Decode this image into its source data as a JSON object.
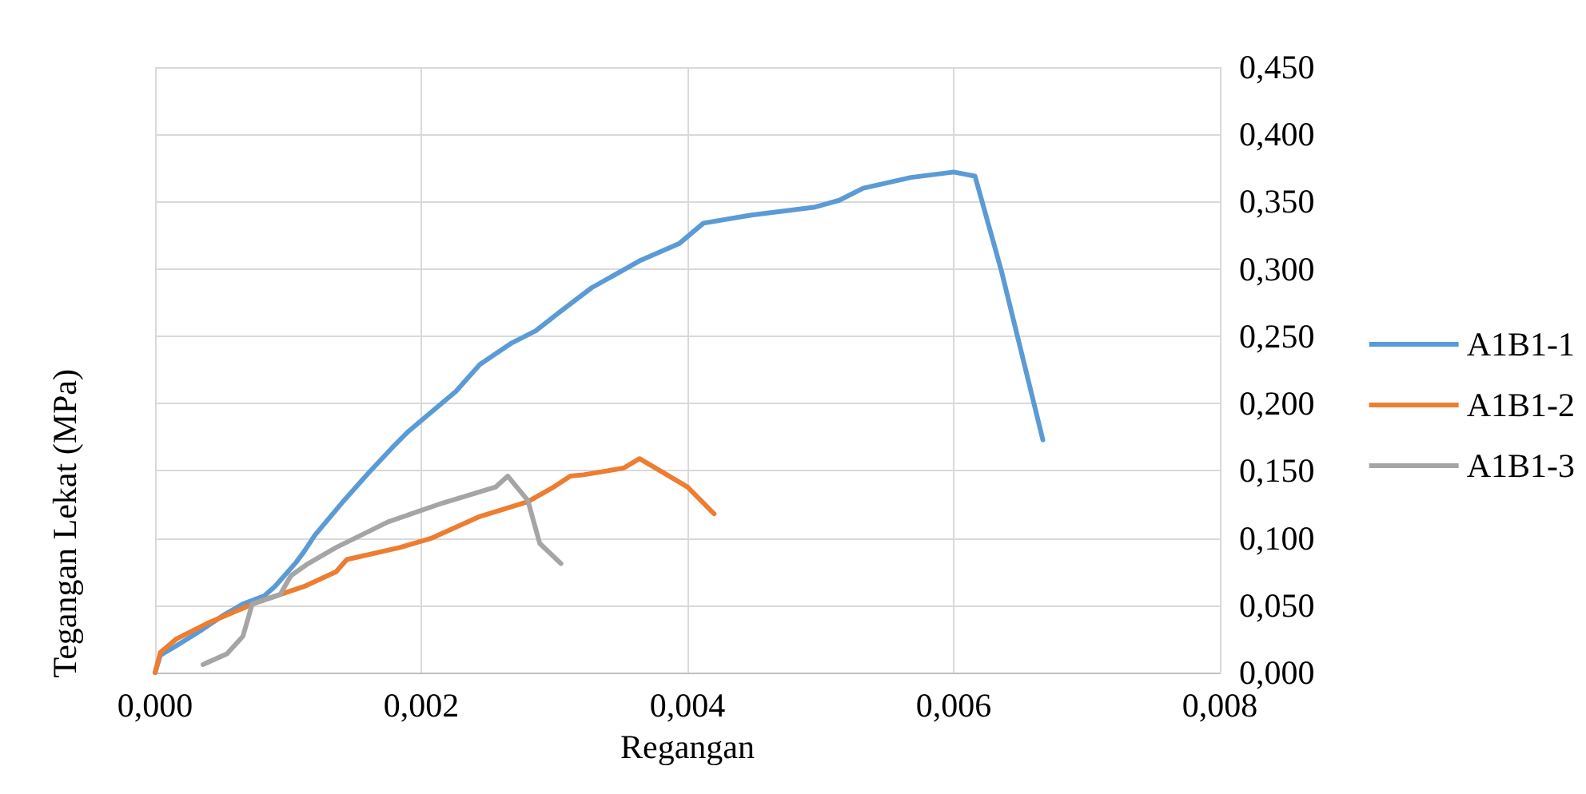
{
  "chart_data": {
    "type": "line",
    "xlabel": "Regangan",
    "ylabel": "Tegangan Lekat (MPa)",
    "xlim": [
      0,
      0.008
    ],
    "xticks": [
      {
        "value": 0,
        "label": "0,000"
      },
      {
        "value": 0.002,
        "label": "0,002"
      },
      {
        "value": 0.004,
        "label": "0,004"
      },
      {
        "value": 0.006,
        "label": "0,006"
      },
      {
        "value": 0.008,
        "label": "0,008"
      }
    ],
    "ylim": [
      0,
      0.45
    ],
    "yticks": [
      {
        "value": 0,
        "label": "0,000"
      },
      {
        "value": 0.05,
        "label": "0,050"
      },
      {
        "value": 0.1,
        "label": "0,100"
      },
      {
        "value": 0.15,
        "label": "0,150"
      },
      {
        "value": 0.2,
        "label": "0,200"
      },
      {
        "value": 0.25,
        "label": "0,250"
      },
      {
        "value": 0.3,
        "label": "0,300"
      },
      {
        "value": 0.35,
        "label": "0,350"
      },
      {
        "value": 0.4,
        "label": "0,400"
      },
      {
        "value": 0.45,
        "label": "0,450"
      }
    ],
    "grid": true,
    "legend": "right",
    "marker": "none",
    "line_style": "solid",
    "series": [
      {
        "name": "A1B1-1",
        "color": "#5b9bd5",
        "x": [
          0,
          4e-05,
          0.00016,
          0.00034,
          0.00052,
          0.00066,
          0.00082,
          0.0009,
          0.00106,
          0.00112,
          0.0012,
          0.00142,
          0.0016,
          0.00178,
          0.0019,
          0.00226,
          0.00244,
          0.00268,
          0.00286,
          0.00304,
          0.00328,
          0.00364,
          0.00394,
          0.00412,
          0.00448,
          0.00496,
          0.00514,
          0.00532,
          0.00568,
          0.006,
          0.00616,
          0.00636,
          0.00667
        ],
        "values": [
          0,
          0.013,
          0.02,
          0.031,
          0.043,
          0.051,
          0.057,
          0.064,
          0.082,
          0.09,
          0.102,
          0.128,
          0.148,
          0.167,
          0.179,
          0.209,
          0.229,
          0.245,
          0.254,
          0.268,
          0.286,
          0.306,
          0.319,
          0.334,
          0.34,
          0.346,
          0.351,
          0.36,
          0.368,
          0.372,
          0.369,
          0.298,
          0.173
        ]
      },
      {
        "name": "A1B1-2",
        "color": "#ed7d31",
        "x": [
          0,
          4e-05,
          0.00016,
          0.0004,
          0.00076,
          0.00112,
          0.00136,
          0.00144,
          0.00184,
          0.00208,
          0.00244,
          0.0028,
          0.00298,
          0.00312,
          0.00322,
          0.00352,
          0.00364,
          0.004,
          0.0042
        ],
        "values": [
          0,
          0.015,
          0.025,
          0.037,
          0.052,
          0.064,
          0.075,
          0.084,
          0.093,
          0.1,
          0.116,
          0.127,
          0.137,
          0.146,
          0.147,
          0.152,
          0.159,
          0.138,
          0.118
        ]
      },
      {
        "name": "A1B1-3",
        "color": "#a5a5a5",
        "x": [
          0.00036,
          0.00054,
          0.00066,
          0.00073,
          0.00094,
          0.00102,
          0.00115,
          0.00136,
          0.00175,
          0.00216,
          0.00256,
          0.00265,
          0.0028,
          0.00289,
          0.00305
        ],
        "values": [
          0.006,
          0.014,
          0.027,
          0.051,
          0.058,
          0.072,
          0.081,
          0.093,
          0.112,
          0.126,
          0.138,
          0.146,
          0.128,
          0.096,
          0.081
        ]
      }
    ]
  }
}
